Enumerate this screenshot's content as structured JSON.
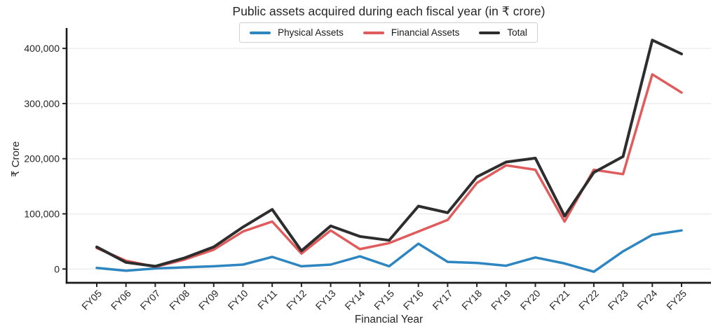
{
  "chart_data": {
    "type": "line",
    "title": "Public assets acquired during each fiscal year (in ₹ crore)",
    "xlabel": "Financial Year",
    "ylabel": "₹ Crore",
    "categories": [
      "FY05",
      "FY06",
      "FY07",
      "FY08",
      "FY09",
      "FY10",
      "FY11",
      "FY12",
      "FY13",
      "FY14",
      "FY15",
      "FY16",
      "FY17",
      "FY18",
      "FY19",
      "FY20",
      "FY21",
      "FY22",
      "FY23",
      "FY24",
      "FY25"
    ],
    "series": [
      {
        "name": "Physical Assets",
        "color": "#2e86c1",
        "values": [
          2000,
          -3000,
          1000,
          3000,
          5000,
          8000,
          22000,
          5000,
          8000,
          23000,
          5000,
          46000,
          13000,
          11000,
          6000,
          21000,
          10000,
          -5000,
          32000,
          62000,
          70000
        ]
      },
      {
        "name": "Financial Assets",
        "color": "#e05c5c",
        "values": [
          38000,
          15000,
          4000,
          17000,
          35000,
          68000,
          86000,
          28000,
          70000,
          36000,
          47000,
          68000,
          89000,
          156000,
          188000,
          180000,
          86000,
          180000,
          172000,
          353000,
          320000
        ]
      },
      {
        "name": "Total",
        "color": "#2d2d2d",
        "values": [
          40000,
          12000,
          5000,
          20000,
          40000,
          76000,
          108000,
          33000,
          78000,
          59000,
          52000,
          114000,
          102000,
          167000,
          194000,
          201000,
          96000,
          175000,
          204000,
          415000,
          390000
        ]
      }
    ],
    "ylim": [
      -25000,
      437000
    ],
    "yticks": [
      {
        "value": 0,
        "label": "0"
      },
      {
        "value": 100000,
        "label": "100,000"
      },
      {
        "value": 200000,
        "label": "200,000"
      },
      {
        "value": 300000,
        "label": "300,000"
      },
      {
        "value": 400000,
        "label": "400,000"
      }
    ],
    "grid": "horizontal",
    "legend_position": "top-center"
  }
}
